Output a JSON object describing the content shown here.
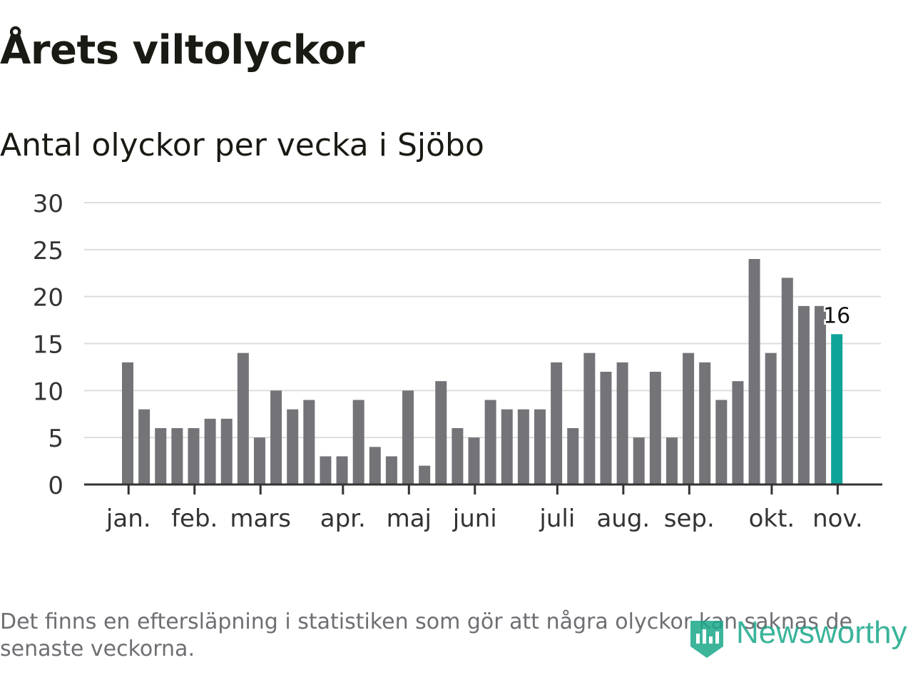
{
  "chart_data": {
    "type": "bar",
    "title": "Årets viltolyckor",
    "subtitle": "Antal olyckor per vecka i Sjöbo",
    "xlabel": "",
    "ylabel": "",
    "ylim": [
      0,
      30
    ],
    "yticks": [
      "0",
      "5",
      "10",
      "15",
      "20",
      "25",
      "30"
    ],
    "grid": true,
    "values": [
      13,
      8,
      6,
      6,
      6,
      7,
      7,
      14,
      5,
      10,
      8,
      9,
      3,
      3,
      9,
      4,
      3,
      10,
      2,
      11,
      6,
      5,
      9,
      8,
      8,
      8,
      13,
      6,
      14,
      12,
      13,
      5,
      12,
      5,
      14,
      13,
      9,
      11,
      24,
      14,
      22,
      19,
      19,
      16
    ],
    "month_labels": [
      {
        "label": "jan.",
        "week_index": 0.4
      },
      {
        "label": "feb.",
        "week_index": 4.4
      },
      {
        "label": "mars",
        "week_index": 8.4
      },
      {
        "label": "apr.",
        "week_index": 13.4
      },
      {
        "label": "maj",
        "week_index": 17.4
      },
      {
        "label": "juni",
        "week_index": 21.4
      },
      {
        "label": "juli",
        "week_index": 26.4
      },
      {
        "label": "aug.",
        "week_index": 30.4
      },
      {
        "label": "sep.",
        "week_index": 34.4
      },
      {
        "label": "okt.",
        "week_index": 39.4
      },
      {
        "label": "nov.",
        "week_index": 43.4
      }
    ],
    "highlight": {
      "index": 43,
      "label": "16"
    },
    "colors": {
      "bar": "#747378",
      "highlight": "#0fa39a",
      "grid": "#dddddd",
      "axis": "#333333",
      "text": "#333333"
    }
  },
  "footnote": "Det finns en eftersläpning i statistiken som gör att några olyckor kan saknas de senaste veckorna.",
  "brand": {
    "name": "Newsworthy",
    "icon": "newsworthy-logo-icon",
    "color": "#1aa88a"
  }
}
